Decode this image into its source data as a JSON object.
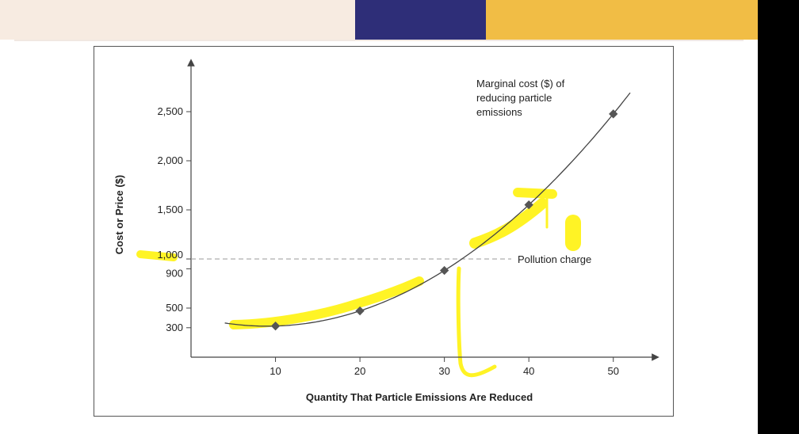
{
  "colors": {
    "band_left": "#f7ebe1",
    "band_mid": "#2e2e78",
    "band_right": "#f1bd45",
    "highlighter": "#fff200",
    "curve": "#444444",
    "marker": "#555555",
    "dashed": "#999999"
  },
  "chart_data": {
    "type": "line",
    "xlabel": "Quantity That Particle Emissions Are Reduced",
    "ylabel": "Cost or Price ($)",
    "x_ticks": [
      10,
      20,
      30,
      40,
      50
    ],
    "y_ticks": [
      300,
      500,
      900,
      1000,
      1500,
      2000,
      2500
    ],
    "y_tick_labels": [
      "300",
      "500",
      "900",
      "1,000",
      "1,500",
      "2,000",
      "2,500"
    ],
    "xlim": [
      0,
      55
    ],
    "ylim": [
      0,
      3000
    ],
    "grid": false,
    "series": [
      {
        "name": "Marginal cost ($) of reducing particle emissions",
        "label_lines": [
          "Marginal cost ($) of",
          "reducing particle",
          "emissions"
        ],
        "points": [
          {
            "x": 10,
            "y": 300
          },
          {
            "x": 20,
            "y": 500
          },
          {
            "x": 30,
            "y": 900
          },
          {
            "x": 40,
            "y": 1500
          },
          {
            "x": 50,
            "y": 2500
          }
        ]
      }
    ],
    "reference_line": {
      "label": "Pollution charge",
      "y": 1000
    }
  }
}
